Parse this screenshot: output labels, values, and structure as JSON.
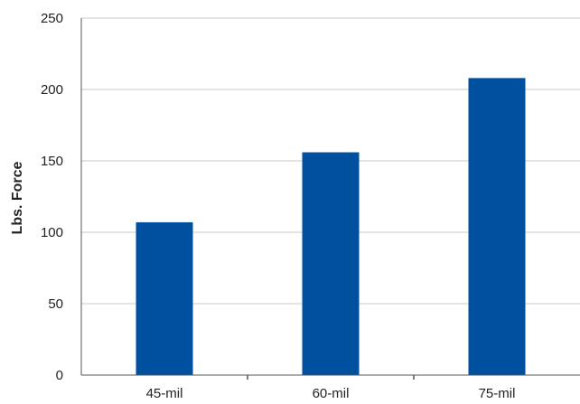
{
  "chart_data": {
    "type": "bar",
    "title": "",
    "xlabel": "",
    "ylabel": "Lbs. Force",
    "categories": [
      "45-mil",
      "60-mil",
      "75-mil"
    ],
    "values": [
      107,
      156,
      208
    ],
    "ylim": [
      0,
      250
    ],
    "yticks": [
      0,
      50,
      100,
      150,
      200,
      250
    ],
    "grid": "horizontal",
    "legend": "none",
    "colors": {
      "bar": "#0050A0",
      "grid": "#c8c8c8",
      "axis": "#555555",
      "text": "#222222"
    }
  }
}
